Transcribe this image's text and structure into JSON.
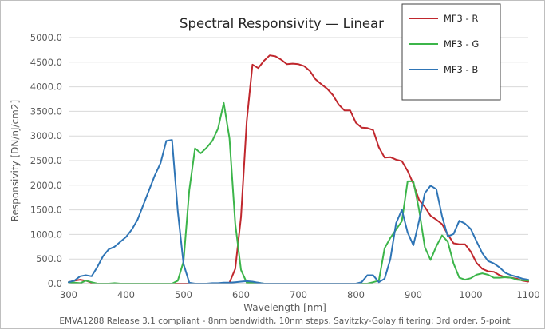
{
  "chart_data": {
    "type": "line",
    "title": "Spectral Responsivity — Linear",
    "xlabel": "Wavelength [nm]",
    "ylabel": "Responsivity [DN/nJ/cm2]",
    "footnote": "EMVA1288 Release 3.1 compliant - 8nm bandwidth, 10nm steps, Savitzky-Golay filtering: 3rd order, 5-point",
    "xlim": [
      300,
      1100
    ],
    "ylim": [
      0,
      5000
    ],
    "x_ticks": [
      "300",
      "400",
      "500",
      "600",
      "700",
      "800",
      "900",
      "1000",
      "1100"
    ],
    "y_ticks": [
      "0.0",
      "500.0",
      "1000.0",
      "1500.0",
      "2000.0",
      "2500.0",
      "3000.0",
      "3500.0",
      "4000.0",
      "4500.0",
      "5000.0"
    ],
    "grid": "horizontal",
    "legend_position": "top-right",
    "x": [
      300,
      310,
      320,
      330,
      340,
      350,
      360,
      370,
      380,
      390,
      400,
      410,
      420,
      430,
      440,
      450,
      460,
      470,
      480,
      490,
      500,
      510,
      520,
      530,
      540,
      550,
      560,
      570,
      580,
      590,
      600,
      610,
      620,
      630,
      640,
      650,
      660,
      670,
      680,
      690,
      700,
      710,
      720,
      730,
      740,
      750,
      760,
      770,
      780,
      790,
      800,
      810,
      820,
      830,
      840,
      850,
      860,
      870,
      880,
      890,
      900,
      910,
      920,
      930,
      940,
      950,
      960,
      970,
      980,
      990,
      1000,
      1010,
      1020,
      1030,
      1040,
      1050,
      1060,
      1070,
      1080,
      1090,
      1100
    ],
    "series": [
      {
        "name": "MF3 - R",
        "color": "#c0272d",
        "values": [
          30,
          60,
          80,
          60,
          20,
          0,
          0,
          0,
          0,
          0,
          0,
          0,
          0,
          0,
          0,
          0,
          0,
          0,
          0,
          0,
          0,
          0,
          0,
          0,
          0,
          0,
          0,
          0,
          20,
          300,
          1350,
          3300,
          4450,
          4380,
          4530,
          4640,
          4620,
          4550,
          4460,
          4470,
          4460,
          4420,
          4320,
          4150,
          4050,
          3960,
          3830,
          3640,
          3520,
          3520,
          3270,
          3170,
          3160,
          3120,
          2770,
          2560,
          2570,
          2520,
          2490,
          2290,
          2030,
          1700,
          1560,
          1380,
          1300,
          1210,
          1000,
          820,
          800,
          800,
          650,
          420,
          300,
          250,
          240,
          170,
          130,
          120,
          100,
          60,
          40
        ]
      },
      {
        "name": "MF3 - G",
        "color": "#3cb54a",
        "values": [
          30,
          20,
          10,
          60,
          30,
          0,
          0,
          0,
          10,
          0,
          0,
          0,
          0,
          0,
          0,
          0,
          0,
          0,
          0,
          60,
          450,
          1900,
          2750,
          2650,
          2760,
          2900,
          3150,
          3670,
          2950,
          1220,
          280,
          20,
          20,
          20,
          0,
          0,
          0,
          0,
          0,
          0,
          0,
          0,
          0,
          0,
          0,
          0,
          0,
          0,
          0,
          0,
          0,
          0,
          0,
          30,
          60,
          720,
          930,
          1100,
          1270,
          2080,
          2080,
          1500,
          740,
          480,
          760,
          980,
          850,
          410,
          120,
          80,
          110,
          180,
          210,
          180,
          120,
          120,
          130,
          120,
          80,
          70,
          60
        ]
      },
      {
        "name": "MF3 - B",
        "color": "#2f75b6",
        "values": [
          30,
          60,
          150,
          170,
          150,
          340,
          560,
          700,
          750,
          850,
          950,
          1100,
          1300,
          1600,
          1900,
          2200,
          2450,
          2900,
          2920,
          1470,
          400,
          20,
          0,
          0,
          0,
          10,
          10,
          20,
          20,
          30,
          40,
          50,
          40,
          20,
          0,
          0,
          0,
          0,
          0,
          0,
          0,
          0,
          0,
          0,
          0,
          0,
          0,
          0,
          0,
          0,
          0,
          30,
          170,
          170,
          30,
          100,
          500,
          1230,
          1500,
          1040,
          780,
          1280,
          1840,
          1990,
          1920,
          1370,
          960,
          1010,
          1280,
          1220,
          1110,
          860,
          620,
          460,
          410,
          330,
          220,
          170,
          140,
          100,
          80
        ]
      }
    ]
  }
}
